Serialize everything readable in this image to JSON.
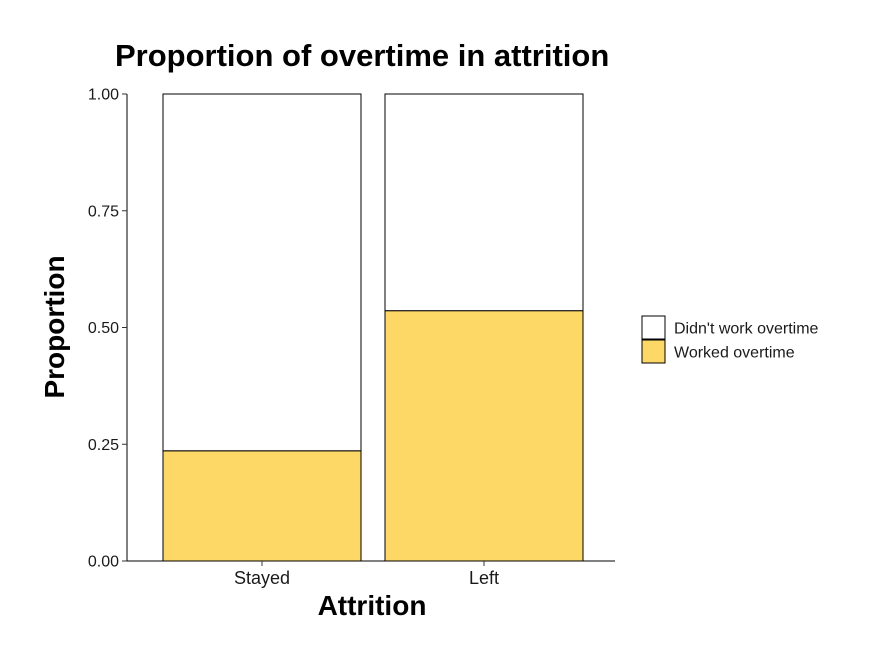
{
  "chart_data": {
    "type": "bar",
    "stacked": true,
    "title": "Proportion of overtime in attrition",
    "xlabel": "Attrition",
    "ylabel": "Proportion",
    "categories": [
      "Stayed",
      "Left"
    ],
    "series": [
      {
        "name": "Worked overtime",
        "values": [
          0.236,
          0.536
        ],
        "color": "#FDD866"
      },
      {
        "name": "Didn't work overtime",
        "values": [
          0.764,
          0.464
        ],
        "color": "#FFFFFF"
      }
    ],
    "ylim": [
      0,
      1
    ],
    "yticks": [
      "0.00",
      "0.25",
      "0.50",
      "0.75",
      "1.00"
    ],
    "legend": {
      "position": "right",
      "order": [
        "Didn't work overtime",
        "Worked overtime"
      ]
    },
    "grid": false
  }
}
